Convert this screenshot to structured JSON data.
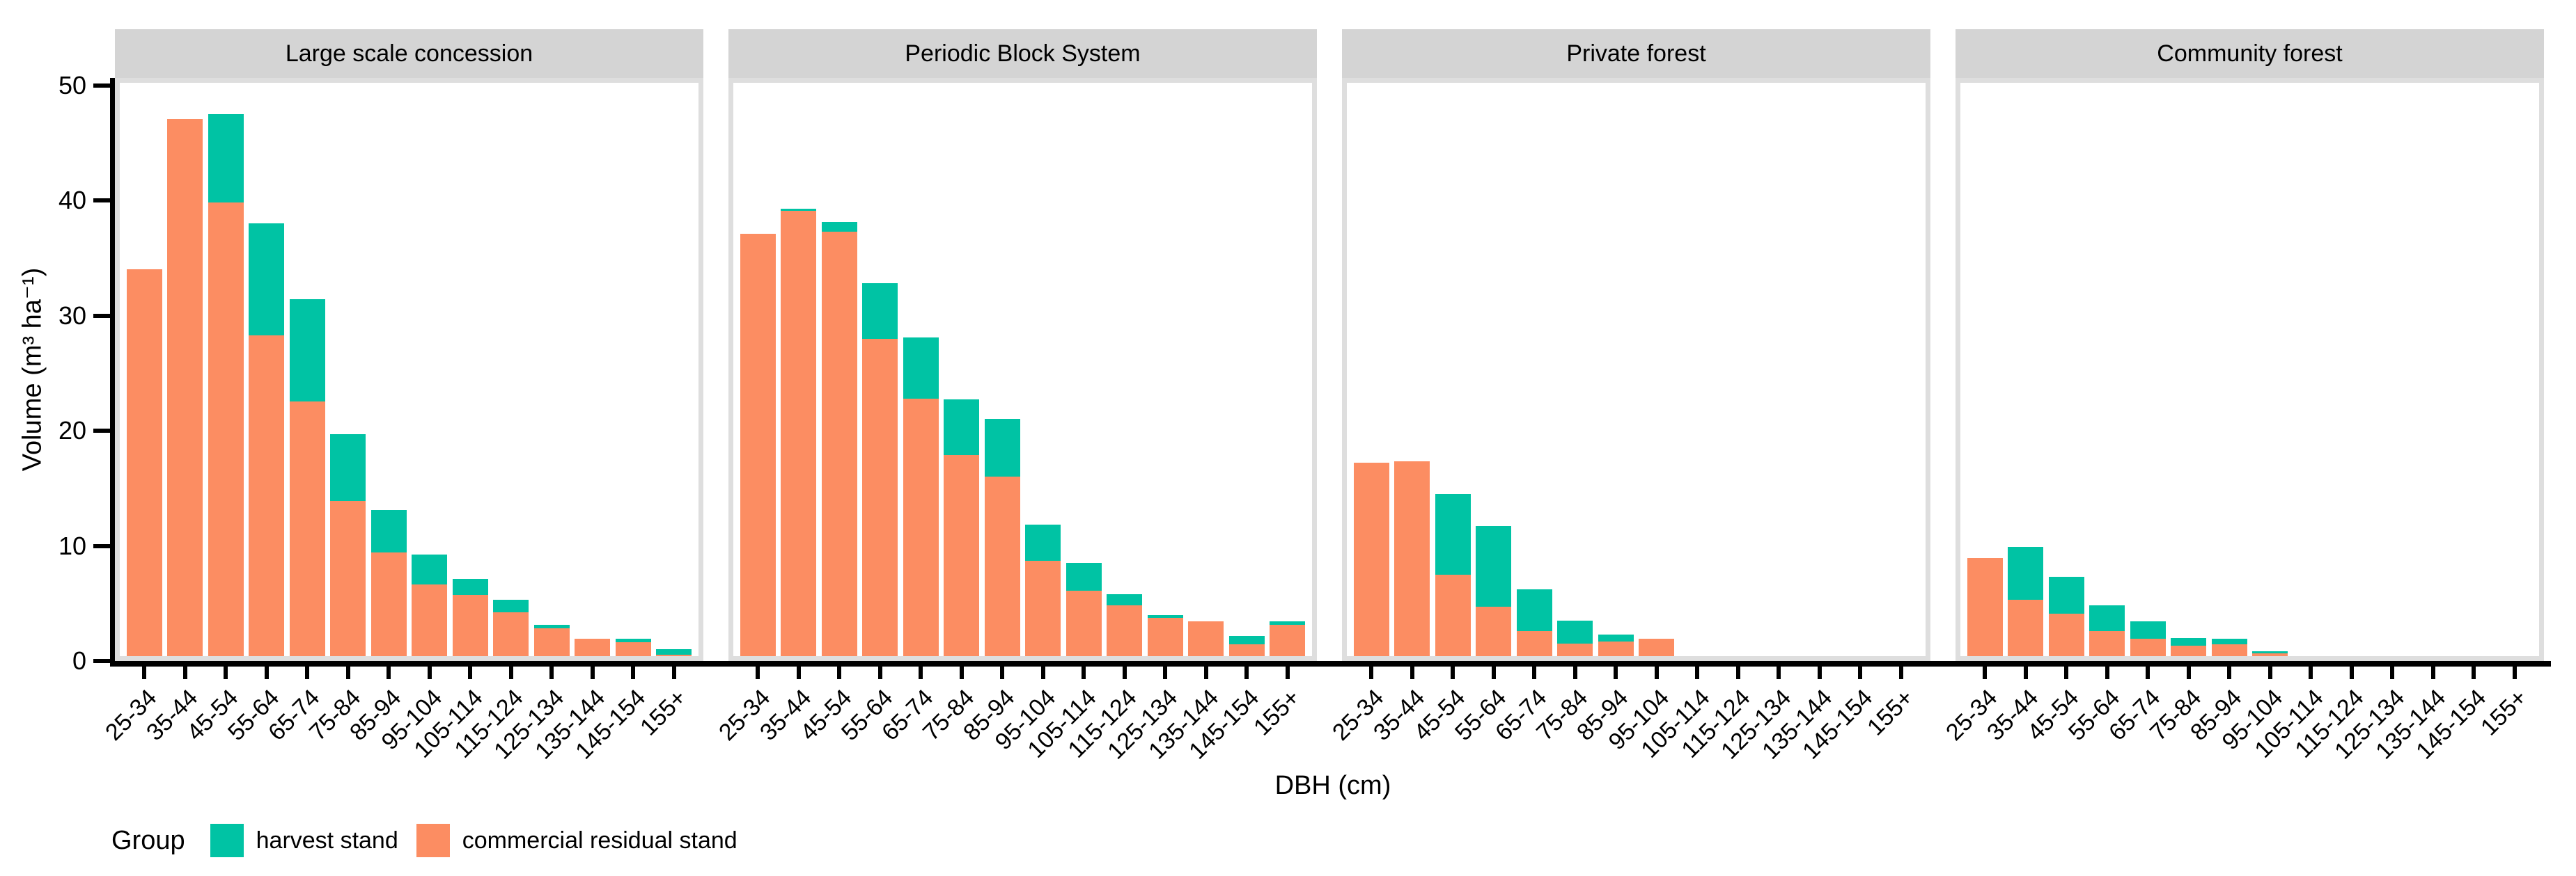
{
  "figure": {
    "y_axis": {
      "title": "Volume (m³ ha⁻¹)",
      "ticks": [
        {
          "label": "0",
          "value": 0
        },
        {
          "label": "10",
          "value": 10
        },
        {
          "label": "20",
          "value": 20
        },
        {
          "label": "30",
          "value": 30
        },
        {
          "label": "40",
          "value": 40
        },
        {
          "label": "50",
          "value": 50
        }
      ]
    },
    "x_axis": {
      "title": "DBH (cm)"
    },
    "colors": {
      "strip_bg": "#D4D4D4",
      "panel_border": "#DEDEDE",
      "axis": "#000000"
    }
  },
  "legend": {
    "title": "Group",
    "items": [
      {
        "label": "harvest stand",
        "color": "#00C3A4"
      },
      {
        "label": "commercial residual stand",
        "color": "#FC8D62"
      }
    ]
  },
  "chart_data": {
    "type": "bar",
    "stacked": true,
    "grid": false,
    "legend_position": "bottom-left",
    "title": "",
    "xlabel": "DBH (cm)",
    "ylabel": "Volume (m³ ha⁻¹)",
    "ylim": [
      0,
      50.7
    ],
    "categories": [
      "25-34",
      "35-44",
      "45-54",
      "55-64",
      "65-74",
      "75-84",
      "85-94",
      "95-104",
      "105-114",
      "115-124",
      "125-134",
      "135-144",
      "145-154",
      "155+"
    ],
    "facets": [
      {
        "title": "Large scale concession",
        "series": [
          {
            "name": "commercial residual stand",
            "values": [
              33.6,
              46.7,
              39.4,
              27.9,
              22.1,
              13.5,
              9.0,
              6.2,
              5.3,
              3.8,
              2.4,
              1.5,
              1.2,
              0.1
            ]
          },
          {
            "name": "harvest stand",
            "values": [
              0,
              0,
              7.7,
              9.7,
              8.9,
              5.8,
              3.7,
              2.6,
              1.4,
              1.1,
              0.3,
              0,
              0.3,
              0.5
            ]
          }
        ]
      },
      {
        "title": "Periodic Block System",
        "series": [
          {
            "name": "commercial residual stand",
            "values": [
              36.7,
              38.7,
              36.9,
              27.6,
              22.4,
              17.5,
              15.6,
              8.3,
              5.7,
              4.4,
              3.3,
              3.0,
              1.0,
              2.75
            ]
          },
          {
            "name": "harvest stand",
            "values": [
              0,
              0.15,
              0.8,
              4.8,
              5.3,
              4.8,
              5.0,
              3.1,
              2.4,
              1.0,
              0.25,
              0,
              0.75,
              0.3
            ]
          }
        ]
      },
      {
        "title": "Private forest",
        "series": [
          {
            "name": "commercial residual stand",
            "values": [
              16.8,
              16.9,
              7.1,
              4.3,
              2.2,
              1.1,
              1.3,
              1.5,
              0,
              0,
              0,
              0,
              0,
              0
            ]
          },
          {
            "name": "harvest stand",
            "values": [
              0,
              0,
              7.0,
              7.0,
              3.6,
              2.0,
              0.6,
              0,
              0,
              0,
              0,
              0,
              0,
              0
            ]
          }
        ]
      },
      {
        "title": "Community forest",
        "series": [
          {
            "name": "commercial residual stand",
            "values": [
              8.5,
              4.9,
              3.7,
              2.2,
              1.5,
              0.9,
              1.0,
              0.25,
              0,
              0,
              0,
              0,
              0,
              0
            ]
          },
          {
            "name": "harvest stand",
            "values": [
              0,
              4.6,
              3.2,
              2.2,
              1.5,
              0.65,
              0.5,
              0.15,
              0,
              0,
              0,
              0,
              0,
              0
            ]
          }
        ]
      }
    ]
  }
}
